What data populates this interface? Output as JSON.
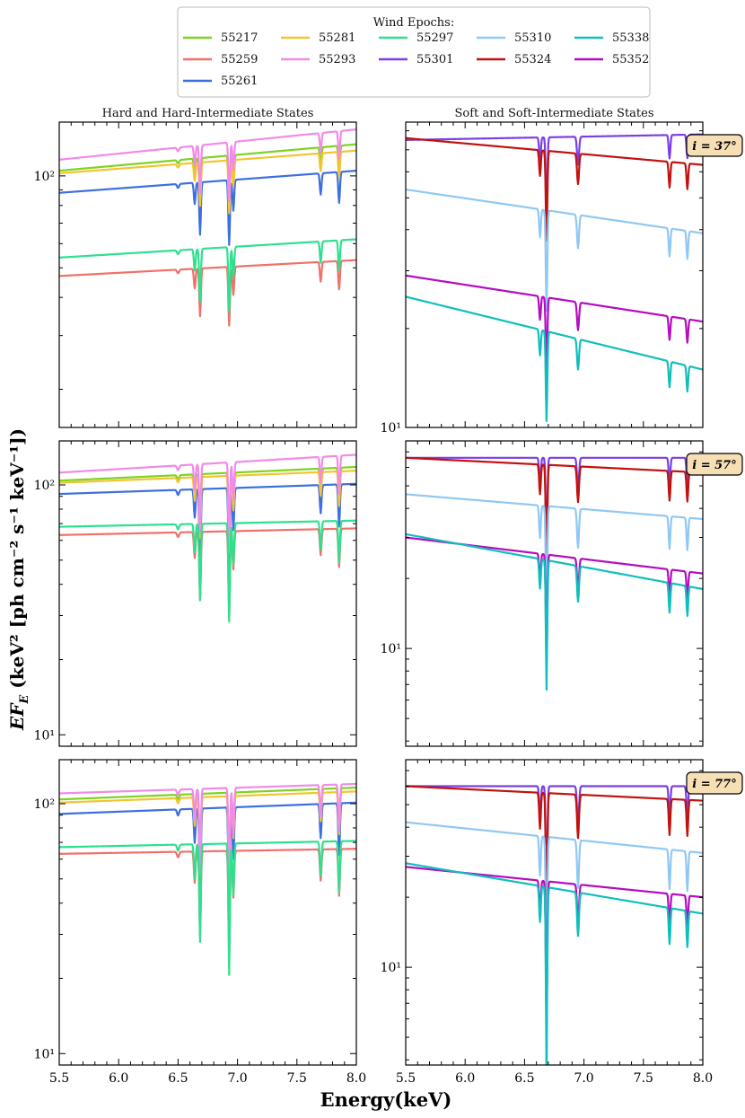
{
  "chart_data": {
    "type": "line",
    "xlabel": "Energy(keV)",
    "ylabel": "EF_E (keV^2 [ph cm^-2 s^-1 keV^-1])",
    "ylabel_parts": {
      "main": "EF",
      "sub": "E",
      "rest": " (keV² [ph cm⁻² s⁻¹ keV⁻¹])"
    },
    "xlim": [
      5.5,
      8.0
    ],
    "xticks": [
      5.5,
      6.0,
      6.5,
      7.0,
      7.5,
      8.0
    ],
    "xtick_labels": [
      "5.5",
      "6.0",
      "6.5",
      "7.0",
      "7.5",
      "8.0"
    ],
    "yscale": "log",
    "column_titles": [
      "Hard and Hard-Intermediate States",
      "Soft and Soft-Intermediate States"
    ],
    "inclinations": [
      "i = 37°",
      "i = 57°",
      "i = 77°"
    ],
    "legend": {
      "title": "Wind Epochs:",
      "location": "top-center",
      "ncol": 5,
      "entries": [
        {
          "label": "55217",
          "color": "#7ed321"
        },
        {
          "label": "55259",
          "color": "#f0706a"
        },
        {
          "label": "55261",
          "color": "#3c6fe0"
        },
        {
          "label": "55281",
          "color": "#f3c431"
        },
        {
          "label": "55293",
          "color": "#f28ae8"
        },
        {
          "label": "55297",
          "color": "#2fe08e"
        },
        {
          "label": "55301",
          "color": "#7b3fe4"
        },
        {
          "label": "55310",
          "color": "#90c8f4"
        },
        {
          "label": "55324",
          "color": "#c0120f"
        },
        {
          "label": "55338",
          "color": "#10bfbd"
        },
        {
          "label": "55352",
          "color": "#b40cc0"
        }
      ]
    },
    "panels": [
      {
        "row": 0,
        "col": 0,
        "ylim": [
          15,
          150
        ],
        "yticks": [
          {
            "value": 100,
            "label": "10²"
          }
        ],
        "series": [
          {
            "name": "55217",
            "start": 104,
            "end": 127
          },
          {
            "name": "55259",
            "start": 47,
            "end": 53
          },
          {
            "name": "55261",
            "start": 88,
            "end": 104
          },
          {
            "name": "55281",
            "start": 102,
            "end": 121
          },
          {
            "name": "55293",
            "start": 113,
            "end": 142
          },
          {
            "name": "55297",
            "start": 54,
            "end": 62
          }
        ]
      },
      {
        "row": 0,
        "col": 1,
        "ylim": [
          10,
          85
        ],
        "yticks": [
          {
            "value": 10,
            "label": "10¹"
          }
        ],
        "series": [
          {
            "name": "55301",
            "start": 75,
            "end": 78
          },
          {
            "name": "55324",
            "start": 76,
            "end": 63
          },
          {
            "name": "55310",
            "start": 53,
            "end": 39
          },
          {
            "name": "55352",
            "start": 29,
            "end": 21
          },
          {
            "name": "55338",
            "start": 25,
            "end": 15
          }
        ]
      },
      {
        "row": 1,
        "col": 0,
        "ylim": [
          9,
          150
        ],
        "yticks": [
          {
            "value": 10,
            "label": "10¹"
          },
          {
            "value": 100,
            "label": "10²"
          }
        ],
        "series": [
          {
            "name": "55217",
            "start": 104,
            "end": 118
          },
          {
            "name": "55259",
            "start": 63,
            "end": 67
          },
          {
            "name": "55261",
            "start": 92,
            "end": 101
          },
          {
            "name": "55281",
            "start": 102,
            "end": 114
          },
          {
            "name": "55293",
            "start": 112,
            "end": 132
          },
          {
            "name": "55297",
            "start": 68,
            "end": 72
          }
        ]
      },
      {
        "row": 1,
        "col": 1,
        "ylim": [
          3.8,
          78
        ],
        "yticks": [
          {
            "value": 10,
            "label": "10¹"
          }
        ],
        "series": [
          {
            "name": "55301",
            "start": 66,
            "end": 66
          },
          {
            "name": "55324",
            "start": 66,
            "end": 57
          },
          {
            "name": "55310",
            "start": 46,
            "end": 36
          },
          {
            "name": "55352",
            "start": 30,
            "end": 21
          },
          {
            "name": "55338",
            "start": 31,
            "end": 18
          }
        ]
      },
      {
        "row": 2,
        "col": 0,
        "ylim": [
          9,
          150
        ],
        "yticks": [
          {
            "value": 10,
            "label": "10¹"
          },
          {
            "value": 100,
            "label": "10²"
          }
        ],
        "series": [
          {
            "name": "55217",
            "start": 104,
            "end": 116
          },
          {
            "name": "55259",
            "start": 63,
            "end": 66
          },
          {
            "name": "55261",
            "start": 91,
            "end": 101
          },
          {
            "name": "55281",
            "start": 101,
            "end": 112
          },
          {
            "name": "55293",
            "start": 110,
            "end": 120
          },
          {
            "name": "55297",
            "start": 67,
            "end": 71
          }
        ]
      },
      {
        "row": 2,
        "col": 1,
        "ylim": [
          3.8,
          78
        ],
        "yticks": [
          {
            "value": 10,
            "label": "10¹"
          }
        ],
        "series": [
          {
            "name": "55301",
            "start": 60,
            "end": 60
          },
          {
            "name": "55324",
            "start": 60,
            "end": 52
          },
          {
            "name": "55310",
            "start": 42,
            "end": 31
          },
          {
            "name": "55352",
            "start": 27,
            "end": 20
          },
          {
            "name": "55338",
            "start": 28,
            "end": 17
          }
        ]
      }
    ],
    "absorption_lines_keV": [
      6.5,
      6.63,
      6.68,
      6.93,
      6.96,
      7.7,
      7.85
    ]
  }
}
